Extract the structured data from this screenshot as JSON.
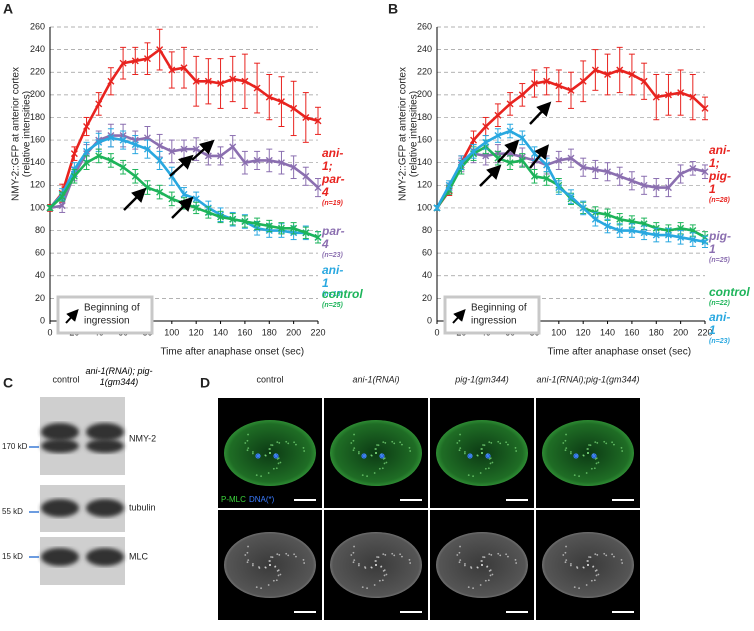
{
  "panel_labels": [
    "A",
    "B",
    "C",
    "D"
  ],
  "chart_data": [
    {
      "type": "line",
      "ylabel": [
        "NMY-2::GFP at anterior cortex",
        "(relative intensities)"
      ],
      "xlabel": "Time after anaphase onset (sec)",
      "inset_text": [
        "Beginning of",
        "ingression"
      ],
      "x": [
        0,
        10,
        20,
        30,
        40,
        50,
        60,
        70,
        80,
        90,
        100,
        110,
        120,
        130,
        140,
        150,
        160,
        170,
        180,
        190,
        200,
        210,
        220
      ],
      "xlim": [
        0,
        220
      ],
      "xticks": [
        0,
        20,
        40,
        60,
        80,
        100,
        120,
        140,
        160,
        180,
        200,
        220
      ],
      "ylim": [
        0,
        260
      ],
      "yticks": [
        0,
        20,
        40,
        60,
        80,
        100,
        120,
        140,
        160,
        180,
        200,
        220,
        240,
        260
      ],
      "grid": true,
      "series": [
        {
          "name": "ani-1; par-4",
          "n": "(n=19)",
          "color": "#e8231f",
          "values": [
            100,
            113,
            148,
            172,
            192,
            212,
            228,
            230,
            232,
            240,
            222,
            224,
            212,
            212,
            210,
            214,
            212,
            206,
            198,
            194,
            188,
            180,
            177
          ],
          "errors": [
            3,
            8,
            6,
            8,
            10,
            12,
            14,
            12,
            14,
            18,
            16,
            18,
            22,
            20,
            22,
            20,
            24,
            22,
            20,
            22,
            24,
            22,
            12
          ]
        },
        {
          "name": "par-4",
          "n": "(n=23)",
          "color": "#8b6fb0",
          "values": [
            100,
            102,
            130,
            148,
            160,
            164,
            164,
            160,
            162,
            155,
            150,
            152,
            152,
            146,
            146,
            154,
            140,
            142,
            142,
            140,
            136,
            128,
            118
          ],
          "errors": [
            2,
            6,
            6,
            8,
            8,
            10,
            10,
            8,
            10,
            10,
            10,
            8,
            10,
            8,
            8,
            10,
            10,
            8,
            10,
            10,
            10,
            8,
            8
          ]
        },
        {
          "name": "ani-1",
          "n": "(n=15)",
          "color": "#29a8e0",
          "values": [
            100,
            112,
            134,
            150,
            158,
            162,
            160,
            156,
            152,
            142,
            128,
            112,
            108,
            100,
            94,
            90,
            88,
            82,
            80,
            80,
            78,
            78,
            74
          ],
          "errors": [
            2,
            5,
            6,
            8,
            8,
            8,
            8,
            8,
            8,
            8,
            8,
            6,
            6,
            6,
            6,
            6,
            6,
            6,
            6,
            6,
            6,
            6,
            5
          ]
        },
        {
          "name": "control",
          "n": "(n=25)",
          "color": "#1db45a",
          "values": [
            100,
            110,
            128,
            140,
            146,
            142,
            136,
            128,
            118,
            114,
            108,
            104,
            100,
            96,
            92,
            90,
            88,
            86,
            84,
            82,
            82,
            78,
            74
          ],
          "errors": [
            2,
            4,
            6,
            6,
            6,
            6,
            6,
            6,
            6,
            6,
            6,
            5,
            5,
            5,
            5,
            5,
            5,
            5,
            5,
            5,
            5,
            5,
            5
          ]
        }
      ]
    },
    {
      "type": "line",
      "ylabel": [
        "NMY-2::GFP at anterior cortex",
        "(relative intensities)"
      ],
      "xlabel": "Time after anaphase onset (sec)",
      "inset_text": [
        "Beginning of",
        "ingression"
      ],
      "x": [
        0,
        10,
        20,
        30,
        40,
        50,
        60,
        70,
        80,
        90,
        100,
        110,
        120,
        130,
        140,
        150,
        160,
        170,
        180,
        190,
        200,
        210,
        220
      ],
      "xlim": [
        0,
        220
      ],
      "xticks": [
        0,
        20,
        40,
        60,
        80,
        100,
        120,
        140,
        160,
        180,
        200,
        220
      ],
      "ylim": [
        0,
        260
      ],
      "yticks": [
        0,
        20,
        40,
        60,
        80,
        100,
        120,
        140,
        160,
        180,
        200,
        220,
        240,
        260
      ],
      "grid": true,
      "series": [
        {
          "name": "ani-1; pig-1",
          "n": "(n=28)",
          "color": "#e8231f",
          "values": [
            100,
            115,
            140,
            160,
            172,
            182,
            192,
            200,
            210,
            212,
            208,
            204,
            212,
            222,
            218,
            222,
            218,
            212,
            198,
            200,
            202,
            198,
            188
          ],
          "errors": [
            2,
            4,
            6,
            8,
            8,
            10,
            10,
            10,
            12,
            12,
            14,
            16,
            18,
            18,
            18,
            20,
            18,
            16,
            20,
            18,
            20,
            20,
            10
          ]
        },
        {
          "name": "pig-1",
          "n": "(n=25)",
          "color": "#8b6fb0",
          "values": [
            100,
            118,
            138,
            148,
            146,
            148,
            148,
            145,
            142,
            138,
            142,
            144,
            136,
            134,
            132,
            128,
            124,
            120,
            118,
            118,
            130,
            135,
            132
          ],
          "errors": [
            2,
            4,
            6,
            8,
            8,
            8,
            8,
            8,
            8,
            8,
            8,
            8,
            8,
            8,
            8,
            8,
            8,
            8,
            8,
            8,
            8,
            6,
            6
          ]
        },
        {
          "name": "control",
          "n": "(n=22)",
          "color": "#1db45a",
          "values": [
            100,
            116,
            136,
            148,
            154,
            144,
            140,
            142,
            128,
            126,
            120,
            108,
            100,
            96,
            94,
            90,
            88,
            86,
            82,
            80,
            82,
            80,
            74
          ],
          "errors": [
            2,
            4,
            6,
            6,
            6,
            6,
            6,
            6,
            6,
            6,
            6,
            5,
            5,
            5,
            5,
            5,
            5,
            5,
            5,
            5,
            5,
            5,
            5
          ]
        },
        {
          "name": "ani-1",
          "n": "(n=23)",
          "color": "#29a8e0",
          "values": [
            100,
            120,
            140,
            150,
            158,
            164,
            168,
            162,
            148,
            138,
            118,
            110,
            100,
            90,
            84,
            80,
            80,
            78,
            76,
            76,
            74,
            72,
            70
          ],
          "errors": [
            2,
            4,
            6,
            6,
            6,
            6,
            6,
            6,
            6,
            6,
            6,
            6,
            6,
            6,
            6,
            6,
            6,
            6,
            6,
            6,
            6,
            6,
            5
          ]
        }
      ]
    }
  ],
  "blot": {
    "columns": [
      "control",
      "ani-1(RNAi); pig-1(gm344)"
    ],
    "rows": [
      "NMY-2",
      "tubulin",
      "MLC"
    ],
    "markers": [
      "170 kD",
      "55 kD",
      "15 kD"
    ]
  },
  "microscopy": {
    "columns": [
      "control",
      "ani-1(RNAi)",
      "pig-1(gm344)",
      "ani-1(RNAi);pig-1(gm344)"
    ],
    "stain": "P-MLC",
    "dna": "DNA(*)"
  }
}
